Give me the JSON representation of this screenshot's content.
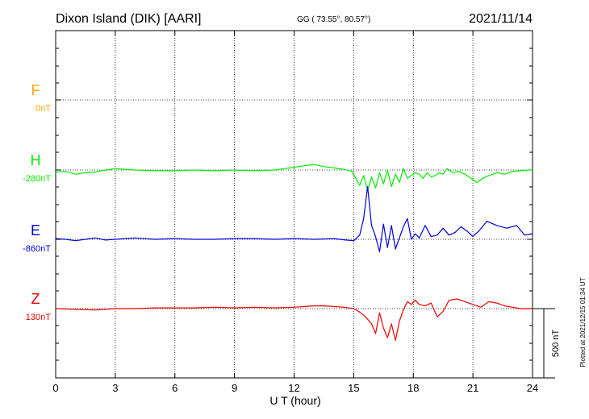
{
  "header": {
    "station": "Dixon Island (DIK)  [AARI]",
    "coords": "GG ( 73.55°,  80.57°)",
    "date": "2021/11/14"
  },
  "plotted_note": "Plotted at 2021/12/15 01:34 UT",
  "chart_data": {
    "type": "line",
    "xlabel": "U T (hour)",
    "xlim": [
      0,
      24
    ],
    "x_ticks": [
      0,
      3,
      6,
      9,
      12,
      15,
      18,
      21,
      24
    ],
    "scale_bar": "500 nT",
    "series": [
      {
        "name": "F",
        "baseline": "0nT",
        "color": "#ffa500",
        "x": [],
        "y": []
      },
      {
        "name": "H",
        "baseline": "-280nT",
        "color": "#00ee00",
        "x": [
          0,
          0.5,
          1,
          1.5,
          2,
          2.5,
          3,
          3.5,
          4,
          5,
          6,
          7,
          8,
          9,
          10,
          11,
          11.5,
          12,
          12.5,
          13,
          13.5,
          14,
          14.5,
          14.9,
          15.1,
          15.3,
          15.5,
          15.7,
          15.9,
          16.1,
          16.3,
          16.5,
          16.7,
          16.9,
          17.1,
          17.3,
          17.5,
          17.7,
          17.9,
          18.1,
          18.3,
          18.5,
          18.7,
          18.9,
          19.1,
          19.3,
          19.5,
          19.7,
          20,
          20.3,
          20.6,
          20.9,
          21.2,
          21.5,
          21.8,
          22.2,
          22.6,
          23,
          23.4,
          23.8,
          24
        ],
        "y": [
          -15,
          -10,
          -30,
          -20,
          -15,
          0,
          10,
          5,
          0,
          -5,
          -5,
          0,
          -5,
          0,
          -5,
          0,
          10,
          20,
          30,
          40,
          25,
          15,
          5,
          -10,
          -60,
          -110,
          -40,
          -150,
          -50,
          -130,
          -20,
          -100,
          0,
          -120,
          -30,
          -90,
          10,
          -60,
          -40,
          -20,
          -30,
          -60,
          -20,
          -50,
          -40,
          -20,
          -30,
          10,
          -20,
          -10,
          -30,
          -60,
          -90,
          -60,
          -40,
          -20,
          -30,
          -10,
          -5,
          0,
          0
        ]
      },
      {
        "name": "E",
        "baseline": "-860nT",
        "color": "#0000dd",
        "x": [
          0,
          0.5,
          1,
          1.5,
          2,
          2.5,
          3,
          3.5,
          4,
          5,
          6,
          7,
          8,
          9,
          10,
          11,
          12,
          13,
          14,
          14.6,
          15,
          15.3,
          15.5,
          15.7,
          15.9,
          16.1,
          16.3,
          16.5,
          16.7,
          16.9,
          17.1,
          17.3,
          17.5,
          17.7,
          17.9,
          18.1,
          18.3,
          18.6,
          18.9,
          19.2,
          19.5,
          19.8,
          20.1,
          20.4,
          20.7,
          21,
          21.3,
          21.7,
          22.2,
          22.7,
          23.2,
          23.6,
          24
        ],
        "y": [
          5,
          0,
          -10,
          0,
          10,
          -5,
          0,
          5,
          10,
          0,
          5,
          0,
          0,
          5,
          5,
          0,
          5,
          0,
          5,
          -5,
          -10,
          30,
          150,
          380,
          100,
          20,
          -90,
          110,
          -60,
          100,
          -70,
          10,
          90,
          150,
          0,
          40,
          10,
          100,
          20,
          30,
          80,
          30,
          50,
          90,
          60,
          20,
          60,
          130,
          100,
          80,
          100,
          30,
          40
        ]
      },
      {
        "name": "Z",
        "baseline": "130nT",
        "color": "#ee0000",
        "x": [
          0,
          1,
          2,
          3,
          4,
          5,
          6,
          7,
          8,
          9,
          10,
          11,
          12,
          13,
          13.5,
          14,
          14.5,
          15,
          15.3,
          15.6,
          15.9,
          16.1,
          16.3,
          16.5,
          16.7,
          16.9,
          17.1,
          17.3,
          17.5,
          17.7,
          17.9,
          18.1,
          18.3,
          18.6,
          18.9,
          19.2,
          19.5,
          19.8,
          20.2,
          20.6,
          21,
          21.4,
          21.8,
          22.2,
          22.6,
          23,
          23.4,
          24
        ],
        "y": [
          0,
          -5,
          -10,
          0,
          0,
          5,
          5,
          5,
          10,
          5,
          10,
          5,
          10,
          20,
          20,
          15,
          10,
          0,
          -25,
          -60,
          -110,
          -180,
          -30,
          -140,
          -210,
          -110,
          -230,
          -90,
          -10,
          50,
          30,
          60,
          30,
          20,
          40,
          -60,
          -20,
          60,
          70,
          50,
          30,
          10,
          50,
          40,
          20,
          10,
          0,
          0
        ]
      }
    ]
  }
}
